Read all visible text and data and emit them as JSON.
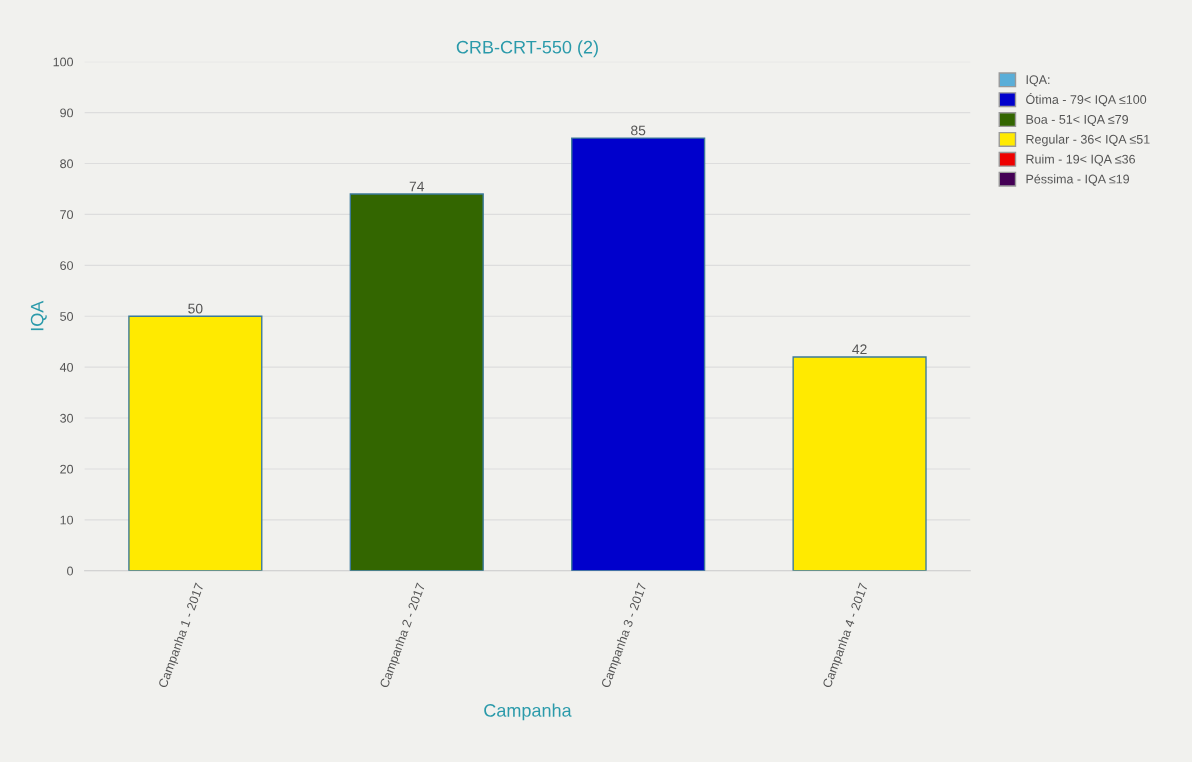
{
  "chart_data": {
    "type": "bar",
    "title": "CRB-CRT-550 (2)",
    "xlabel": "Campanha",
    "ylabel": "IQA",
    "categories": [
      "Campanha 1 - 2017",
      "Campanha 2 - 2017",
      "Campanha 3 - 2017",
      "Campanha 4 - 2017"
    ],
    "stacked": true,
    "series": [
      {
        "name": "IQA:",
        "color": "#5aaed8",
        "values": [
          null,
          null,
          null,
          null
        ]
      },
      {
        "name": "Ótima - 79< IQA ≤100",
        "color": "#0000cc",
        "values": [
          null,
          null,
          85,
          null
        ]
      },
      {
        "name": "Boa - 51< IQA ≤79",
        "color": "#336600",
        "values": [
          null,
          74,
          null,
          null
        ]
      },
      {
        "name": "Regular - 36< IQA ≤51",
        "color": "#ffea00",
        "values": [
          50,
          null,
          null,
          42
        ]
      },
      {
        "name": "Ruim - 19< IQA ≤36",
        "color": "#ee0000",
        "values": [
          null,
          null,
          null,
          null
        ]
      },
      {
        "name": "Péssima - IQA ≤19",
        "color": "#440055",
        "values": [
          null,
          null,
          null,
          null
        ]
      }
    ],
    "ylim": [
      0,
      100
    ],
    "yticks": [
      0,
      10,
      20,
      30,
      40,
      50,
      60,
      70,
      80,
      90,
      100
    ],
    "grid": "y",
    "legend": "top right",
    "data_labels": true
  }
}
